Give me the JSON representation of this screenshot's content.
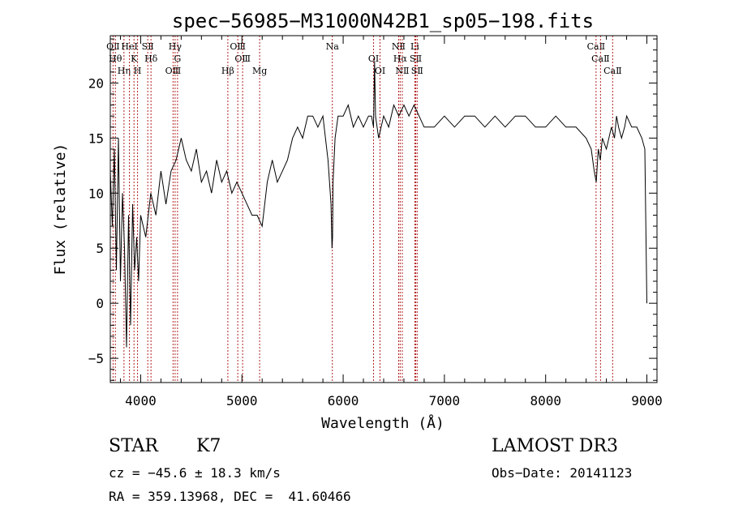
{
  "chart_data": {
    "type": "line",
    "title": "spec−56985−M31000N42B1_sp05−198.fits",
    "xlabel": "Wavelength (Å)",
    "ylabel": "Flux (relative)",
    "xlim": [
      3700,
      9100
    ],
    "ylim": [
      -7.2,
      24.3
    ],
    "x_ticks": [
      4000,
      5000,
      6000,
      7000,
      8000,
      9000
    ],
    "x_tick_labels": [
      "4000",
      "5000",
      "6000",
      "7000",
      "8000",
      "9000"
    ],
    "y_ticks": [
      -5,
      0,
      5,
      10,
      15,
      20
    ],
    "y_tick_labels": [
      "−5",
      "0",
      "5",
      "10",
      "15",
      "20"
    ],
    "line_color": "#000000",
    "marker_color": "#b22222",
    "series": [
      {
        "name": "flux",
        "x": [
          3700,
          3720,
          3740,
          3760,
          3780,
          3800,
          3820,
          3840,
          3860,
          3880,
          3900,
          3920,
          3940,
          3960,
          3980,
          4000,
          4050,
          4100,
          4150,
          4200,
          4250,
          4300,
          4350,
          4400,
          4450,
          4500,
          4550,
          4600,
          4650,
          4700,
          4750,
          4800,
          4850,
          4900,
          4950,
          5000,
          5050,
          5100,
          5150,
          5200,
          5250,
          5300,
          5350,
          5400,
          5450,
          5500,
          5550,
          5600,
          5650,
          5700,
          5750,
          5800,
          5850,
          5880,
          5890,
          5895,
          5900,
          5920,
          5950,
          6000,
          6050,
          6100,
          6150,
          6200,
          6250,
          6280,
          6300,
          6310,
          6320,
          6350,
          6400,
          6450,
          6500,
          6550,
          6600,
          6650,
          6700,
          6750,
          6800,
          6900,
          7000,
          7100,
          7200,
          7300,
          7400,
          7500,
          7600,
          7700,
          7800,
          7900,
          8000,
          8100,
          8200,
          8300,
          8400,
          8450,
          8480,
          8500,
          8520,
          8540,
          8560,
          8600,
          8650,
          8680,
          8700,
          8720,
          8750,
          8780,
          8800,
          8850,
          8900,
          8950,
          8980,
          9000
        ],
        "y": [
          12,
          7,
          14,
          3,
          15,
          2,
          10,
          5,
          -4,
          8,
          -2,
          9,
          3,
          6,
          2,
          8,
          6,
          10,
          8,
          12,
          9,
          12,
          13,
          15,
          13,
          12,
          14,
          11,
          12,
          10,
          13,
          11,
          12,
          10,
          11,
          10,
          9,
          8,
          8,
          7,
          11,
          13,
          11,
          12,
          13,
          15,
          16,
          15,
          17,
          17,
          16,
          17,
          13,
          9,
          5,
          6,
          11,
          15,
          17,
          17,
          18,
          16,
          17,
          16,
          17,
          17,
          16,
          22,
          17,
          15,
          17,
          16,
          18,
          17,
          18,
          17,
          18,
          17,
          16,
          16,
          17,
          16,
          17,
          17,
          16,
          17,
          16,
          17,
          17,
          16,
          16,
          17,
          16,
          16,
          15,
          14,
          12,
          11,
          14,
          13,
          15,
          14,
          16,
          15,
          17,
          16,
          15,
          16,
          17,
          16,
          16,
          15,
          14,
          0
        ]
      }
    ],
    "line_markers": [
      {
        "label": "OⅡ",
        "x": 3727
      },
      {
        "label": "Hθ",
        "x": 3750
      },
      {
        "label": "Hη",
        "x": 3835
      },
      {
        "label": "HeⅠ",
        "x": 3889
      },
      {
        "label": "K",
        "x": 3934
      },
      {
        "label": "H",
        "x": 3969
      },
      {
        "label": "SⅡ",
        "x": 4070
      },
      {
        "label": "Hδ",
        "x": 4102
      },
      {
        "label": "OⅢ",
        "x": 4320
      },
      {
        "label": "Hγ",
        "x": 4340
      },
      {
        "label": "G",
        "x": 4364
      },
      {
        "label": "Hβ",
        "x": 4861
      },
      {
        "label": "OⅢ",
        "x": 4959
      },
      {
        "label": "OⅢ",
        "x": 5007
      },
      {
        "label": "Mg",
        "x": 5175
      },
      {
        "label": "Na",
        "x": 5893
      },
      {
        "label": "OⅠ",
        "x": 6300
      },
      {
        "label": "OⅠ",
        "x": 6364
      },
      {
        "label": "NⅡ",
        "x": 6548
      },
      {
        "label": "Hα",
        "x": 6563
      },
      {
        "label": "NⅡ",
        "x": 6584
      },
      {
        "label": "Li",
        "x": 6708
      },
      {
        "label": "SⅡ",
        "x": 6717
      },
      {
        "label": "SⅡ",
        "x": 6731
      },
      {
        "label": "CaⅡ",
        "x": 8498
      },
      {
        "label": "CaⅡ",
        "x": 8542
      },
      {
        "label": "CaⅡ",
        "x": 8662
      }
    ]
  },
  "info": {
    "object_class": "STAR",
    "subclass": "K7",
    "survey": "LAMOST DR3",
    "cz": "cz = −45.6 ± 18.3 km/s",
    "obs_date": "Obs−Date: 20141123",
    "coords": "RA = 359.13968, DEC =  41.60466"
  }
}
